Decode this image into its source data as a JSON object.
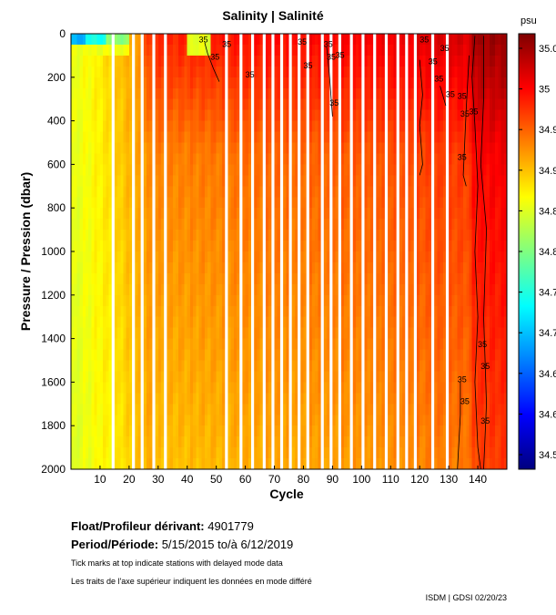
{
  "chart_data": {
    "type": "heatmap",
    "title": "Salinity | Salinité",
    "xlabel": "Cycle",
    "ylabel": "Pressure / Pression (dbar)",
    "xlim": [
      0,
      150
    ],
    "ylim": [
      0,
      2000
    ],
    "x_ticks": [
      10,
      20,
      30,
      40,
      50,
      60,
      70,
      80,
      90,
      100,
      110,
      120,
      130,
      140
    ],
    "y_ticks": [
      0,
      200,
      400,
      600,
      800,
      1000,
      1200,
      1400,
      1600,
      1800,
      2000
    ],
    "colorbar": {
      "unit": "psu",
      "range": [
        34.45,
        35.1
      ],
      "tick_labels": [
        "35.0",
        "35",
        "34.9",
        "34.9",
        "34.8",
        "34.8",
        "34.7",
        "34.7",
        "34.6",
        "34.6",
        "34.5"
      ],
      "colormap": [
        "#00007f",
        "#0000ff",
        "#0080ff",
        "#00ffff",
        "#80ff80",
        "#ffff00",
        "#ff8000",
        "#ff0000",
        "#7f0000"
      ]
    },
    "gap_cycles": [
      14,
      21,
      24,
      28,
      32,
      53,
      58,
      62,
      66,
      69,
      72,
      75,
      78,
      81,
      86,
      89,
      92,
      96,
      100,
      104,
      108,
      112,
      115,
      118,
      124,
      129
    ],
    "contour": {
      "level": "35",
      "label": "35"
    }
  },
  "float_label": "Float/Profileur dérivant:",
  "float_value": "4901779",
  "period_label": "Period/Période:",
  "period_value": "5/15/2015  to/à  6/12/2019",
  "note_en": "Tick marks at top indicate stations with delayed mode data",
  "note_fr": "Les traits de l'axe supérieur indiquent les données en mode différé",
  "footer": "ISDM | GDSI  02/20/23"
}
